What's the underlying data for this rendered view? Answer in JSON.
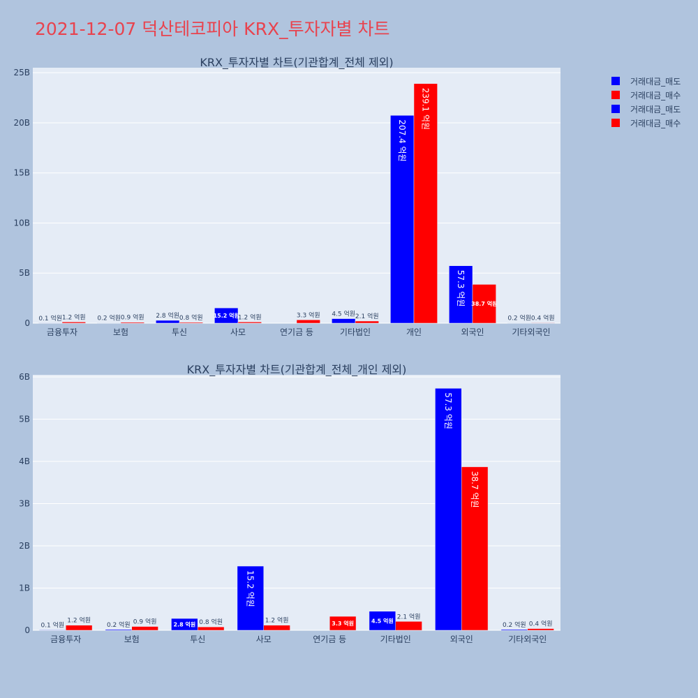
{
  "page_title": "2021-12-07 덕산테코피아 KRX_투자자별 차트",
  "legend": [
    {
      "label": "거래대금_매도",
      "color": "#0000ff"
    },
    {
      "label": "거래대금_매수",
      "color": "#ff0000"
    },
    {
      "label": "거래대금_매도",
      "color": "#0000ff"
    },
    {
      "label": "거래대금_매수",
      "color": "#ff0000"
    }
  ],
  "colors": {
    "sell": "#0000ff",
    "buy": "#ff0000",
    "plot_bg": "#e5ecf6",
    "grid": "#ffffff",
    "axis_text": "#2a3f5f"
  },
  "chart_data": [
    {
      "type": "bar",
      "title": "KRX_투자자별 차트(기관합계_전체 제외)",
      "categories": [
        "금융투자",
        "보험",
        "투신",
        "사모",
        "연기금 등",
        "기타법인",
        "개인",
        "외국인",
        "기타외국인"
      ],
      "series": [
        {
          "name": "거래대금_매도",
          "values": [
            0.01,
            0.02,
            0.28,
            1.52,
            0,
            0.45,
            20.74,
            5.73,
            0.02
          ],
          "labels": [
            "0.1 억원",
            "0.2 억원",
            "2.8 억원",
            "15.2 억원",
            "",
            "4.5 억원",
            "207.4 억원",
            "57.3 억원",
            "0.2 억원"
          ]
        },
        {
          "name": "거래대금_매수",
          "values": [
            0.12,
            0.09,
            0.08,
            0.12,
            0.33,
            0.21,
            23.91,
            3.87,
            0.04
          ],
          "labels": [
            "1.2 억원",
            "0.9 억원",
            "0.8 억원",
            "1.2 억원",
            "3.3 억원",
            "2.1 억원",
            "239.1 억원",
            "38.7 억원",
            "0.4 억원"
          ]
        }
      ],
      "ylim": [
        0,
        25.5
      ],
      "yticks": [
        0,
        5,
        10,
        15,
        20,
        25
      ],
      "ytick_labels": [
        "0",
        "5B",
        "10B",
        "15B",
        "20B",
        "25B"
      ]
    },
    {
      "type": "bar",
      "title": "KRX_투자자별 차트(기관합계_전체_개인 제외)",
      "categories": [
        "금융투자",
        "보험",
        "투신",
        "사모",
        "연기금 등",
        "기타법인",
        "외국인",
        "기타외국인"
      ],
      "series": [
        {
          "name": "거래대금_매도",
          "values": [
            0.01,
            0.02,
            0.28,
            1.52,
            0,
            0.45,
            5.73,
            0.02
          ],
          "labels": [
            "0.1 억원",
            "0.2 억원",
            "2.8 억원",
            "15.2 억원",
            "",
            "4.5 억원",
            "57.3 억원",
            "0.2 억원"
          ]
        },
        {
          "name": "거래대금_매수",
          "values": [
            0.12,
            0.09,
            0.08,
            0.12,
            0.33,
            0.21,
            3.87,
            0.04
          ],
          "labels": [
            "1.2 억원",
            "0.9 억원",
            "0.8 억원",
            "1.2 억원",
            "3.3 억원",
            "2.1 억원",
            "38.7 억원",
            "0.4 억원"
          ]
        }
      ],
      "ylim": [
        0,
        6.05
      ],
      "yticks": [
        0,
        1,
        2,
        3,
        4,
        5,
        6
      ],
      "ytick_labels": [
        "0",
        "1B",
        "2B",
        "3B",
        "4B",
        "5B",
        "6B"
      ]
    }
  ]
}
